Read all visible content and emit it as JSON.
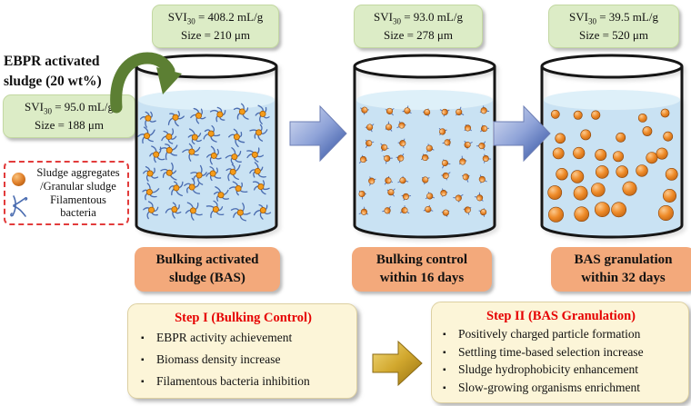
{
  "figure": {
    "type": "process-diagram",
    "topic": "EBPR bulking activated sludge granulation"
  },
  "bullet_char": "▪",
  "inoculum": {
    "title": [
      "EBPR activated",
      "sludge (20 wt%)"
    ],
    "svi_base": "SVI",
    "svi_sub": "30",
    "svi_rest": " = 95.0 mL/g",
    "size_text": "Size = 188 μm"
  },
  "legend": {
    "items": [
      {
        "icon": "granule-icon",
        "lines": [
          "Sludge aggregates",
          "/Granular sludge"
        ]
      },
      {
        "icon": "filament-icon",
        "lines": [
          "Filamentous",
          "bacteria"
        ]
      }
    ]
  },
  "flasks": [
    {
      "top_label": {
        "svi_base": "SVI",
        "svi_sub": "30",
        "svi_rest": " = 408.2 mL/g",
        "size_text": "Size = 210 μm"
      },
      "caption": [
        "Bulking activated",
        "sludge (BAS)"
      ],
      "particles": {
        "type": "floc-with-filaments",
        "count": 36
      }
    },
    {
      "top_label": {
        "svi_base": "SVI",
        "svi_sub": "30",
        "svi_rest": " = 93.0 mL/g",
        "size_text": "Size = 278 μm"
      },
      "caption": [
        "Bulking control",
        "within 16 days"
      ],
      "particles": {
        "type": "small-aggregates",
        "count": 48
      }
    },
    {
      "top_label": {
        "svi_base": "SVI",
        "svi_sub": "30",
        "svi_rest": " = 39.5 mL/g",
        "size_text": "Size = 520 μm"
      },
      "caption": [
        "BAS granulation",
        "within 32 days"
      ],
      "particles": {
        "type": "granules",
        "count": 32
      }
    }
  ],
  "steps": [
    {
      "title": "Step I (Bulking Control)",
      "bullets": [
        "EBPR activity achievement",
        "Biomass density increase",
        "Filamentous bacteria inhibition"
      ]
    },
    {
      "title": "Step II (BAS Granulation)",
      "bullets": [
        "Positively charged particle formation",
        "Settling time-based selection increase",
        "Sludge hydrophobicity enhancement",
        "Slow-growing organisms enrichment"
      ]
    }
  ],
  "palette": {
    "label_green": "#dcecc6",
    "caption_orange": "#f3a97b",
    "step_bg": "#fcf5d8",
    "step_title_red": "#e60000",
    "water_blue": "#c9e2f3",
    "water_surface": "#def0f9",
    "granule_orange": "#e8862a",
    "filament_blue": "#4a6cb0",
    "arrow_blue_dark": "#2f4fa0",
    "arrow_gold": "#caa02c",
    "pour_green": "#5c7f33",
    "legend_border_red": "#e23b3b"
  }
}
